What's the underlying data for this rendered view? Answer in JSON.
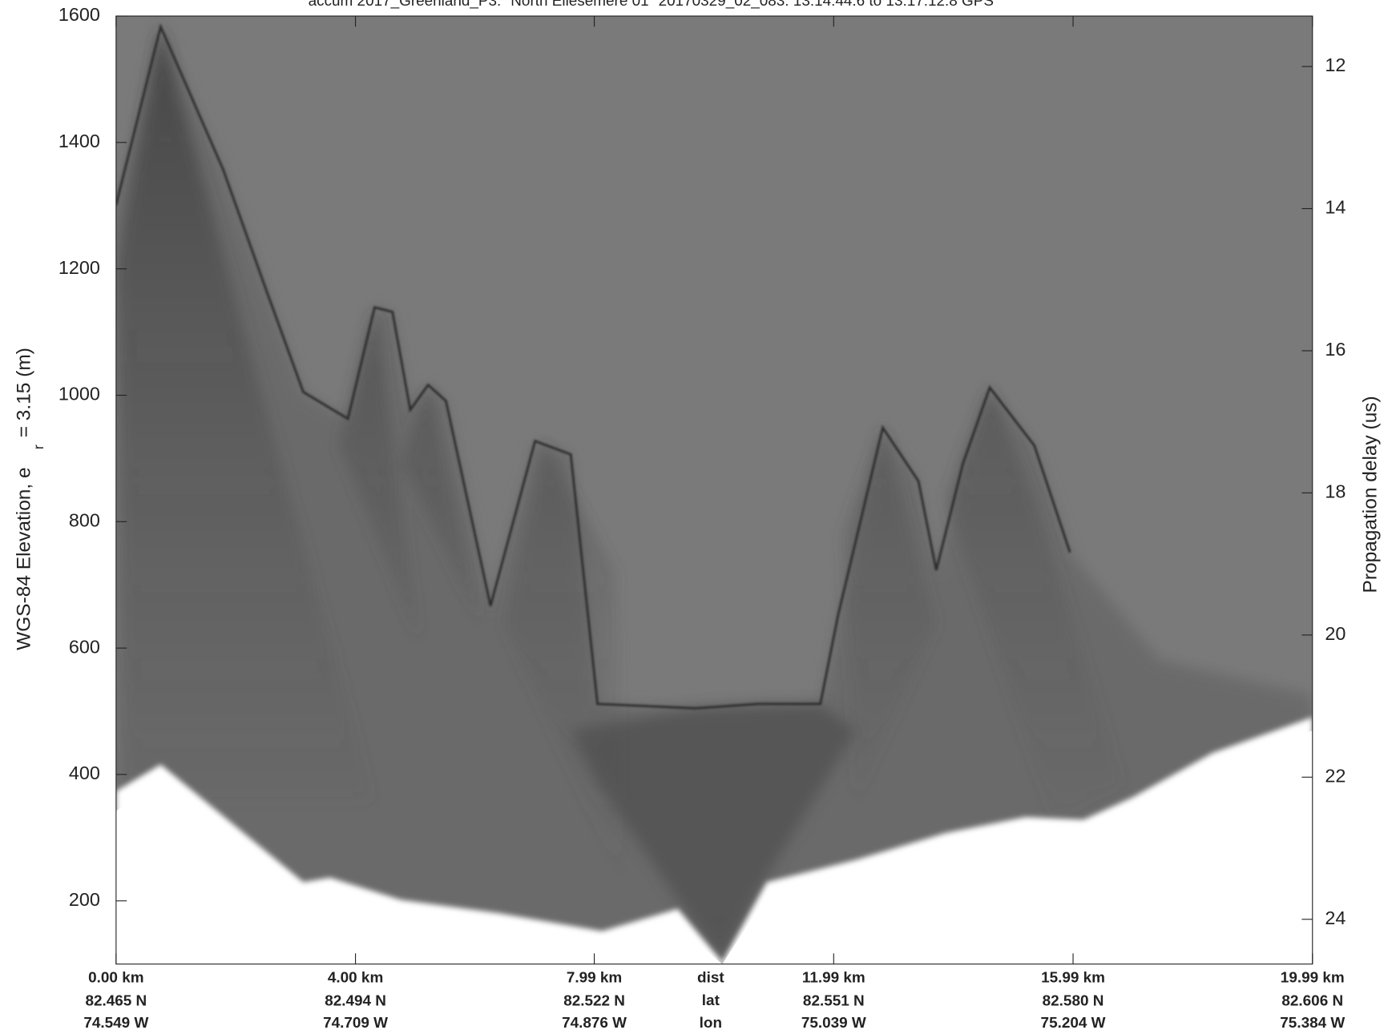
{
  "chart_data": {
    "type": "image",
    "title": "accum 2017_Greenland_P3: \"North Ellesemere 01\" 20170329_02_083: 13:14:44.6 to 13:17:12.8 GPS",
    "ylabel": "WGS-84 Elevation, e",
    "ylabel_sub": "r",
    "ylabel_end": "= 3.15 (m)",
    "y2label": "Propagation delay (us)",
    "ylim": [
      100,
      1600
    ],
    "yticks": [
      200,
      400,
      600,
      800,
      1000,
      1200,
      1400,
      1600
    ],
    "y2lim": [
      24.63,
      11.29
    ],
    "y2ticks": [
      12,
      14,
      16,
      18,
      20,
      22,
      24
    ],
    "xlim": [
      0,
      19.99
    ],
    "xticks": [
      {
        "value": 0,
        "label": "0.00 km"
      },
      {
        "value": 4.0,
        "label": "4.00 km"
      },
      {
        "value": 7.99,
        "label": "7.99 km"
      },
      {
        "value": 11.99,
        "label": "11.99 km"
      },
      {
        "value": 15.99,
        "label": "15.99 km"
      },
      {
        "value": 19.99,
        "label": "19.99 km"
      }
    ],
    "xtick_lat": [
      "82.465 N",
      "82.494 N",
      "82.522 N",
      "82.551 N",
      "82.580 N",
      "82.606 N"
    ],
    "xtick_lon": [
      "74.549 W",
      "74.709 W",
      "74.876 W",
      "75.039 W",
      "75.204 W",
      "75.384 W"
    ],
    "xrow_labels": [
      "dist",
      "lat",
      "lon"
    ]
  }
}
